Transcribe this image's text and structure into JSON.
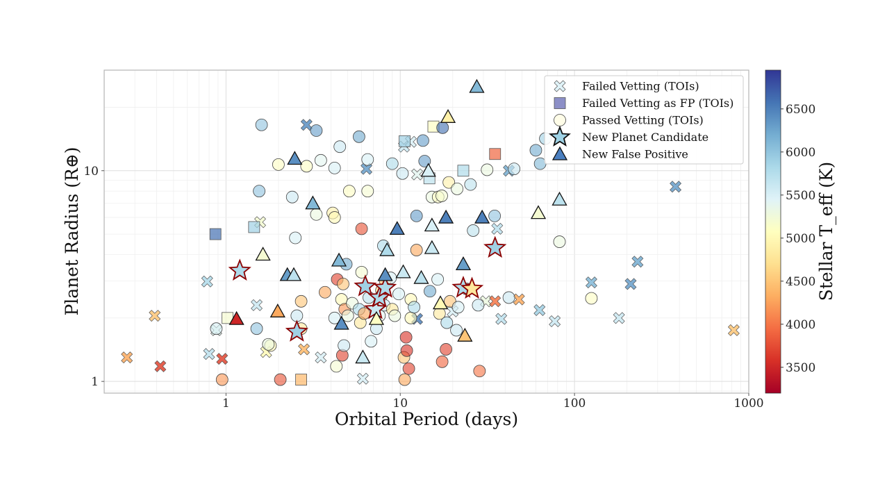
{
  "chart_data": {
    "type": "scatter",
    "x_scale": "log",
    "y_scale": "log",
    "xlabel": "Orbital Period (days)",
    "ylabel": "Planet Radius (R⊕)",
    "xlim": [
      0.2,
      1000
    ],
    "ylim": [
      0.88,
      30
    ],
    "x_ticks": [
      {
        "value": 1,
        "label": "1"
      },
      {
        "value": 10,
        "label": "10"
      },
      {
        "value": 100,
        "label": "100"
      },
      {
        "value": 1000,
        "label": "1000"
      }
    ],
    "y_ticks": [
      {
        "value": 1,
        "label": "1"
      },
      {
        "value": 10,
        "label": "10"
      }
    ],
    "grid": true,
    "legend_position": "top-right",
    "colorbar": {
      "label": "Stellar T_eff (K)",
      "range": [
        3200,
        6950
      ],
      "ticks": [
        3500,
        4000,
        4500,
        5000,
        5500,
        6000,
        6500
      ],
      "colormap": "RdYlBu",
      "colors": [
        "#a50026",
        "#d73027",
        "#f46d43",
        "#fdae61",
        "#fee090",
        "#ffffbf",
        "#e0f3f8",
        "#abd9e9",
        "#74add1",
        "#4575b4",
        "#313695"
      ]
    },
    "series": [
      {
        "name": "Failed Vetting (TOIs)",
        "marker": "x",
        "points": [
          [
            0.27,
            1.3,
            4300
          ],
          [
            0.39,
            2.05,
            4500
          ],
          [
            0.42,
            1.18,
            3700
          ],
          [
            0.78,
            2.98,
            5800
          ],
          [
            0.8,
            1.35,
            5700
          ],
          [
            0.88,
            1.75,
            5400
          ],
          [
            0.95,
            1.28,
            3700
          ],
          [
            1.5,
            2.3,
            5600
          ],
          [
            1.57,
            5.7,
            5200
          ],
          [
            1.7,
            1.38,
            5000
          ],
          [
            2.8,
            1.42,
            4400
          ],
          [
            2.9,
            16.5,
            6400
          ],
          [
            3.5,
            1.3,
            5500
          ],
          [
            6.1,
            1.03,
            5500
          ],
          [
            6.4,
            10.2,
            6300
          ],
          [
            10.5,
            13.0,
            5600
          ],
          [
            11.5,
            13.7,
            5500
          ],
          [
            12.5,
            9.6,
            5400
          ],
          [
            12.5,
            1.98,
            6500
          ],
          [
            20,
            2.15,
            5500
          ],
          [
            31,
            2.4,
            5300
          ],
          [
            35,
            2.4,
            4000
          ],
          [
            36,
            5.3,
            5700
          ],
          [
            38,
            1.98,
            5700
          ],
          [
            42,
            10.0,
            6200
          ],
          [
            48,
            2.45,
            4300
          ],
          [
            63,
            2.18,
            5900
          ],
          [
            77,
            1.93,
            5600
          ],
          [
            125,
            2.95,
            6100
          ],
          [
            180,
            2.0,
            5600
          ],
          [
            210,
            2.9,
            6300
          ],
          [
            230,
            3.7,
            6200
          ],
          [
            380,
            8.4,
            6300
          ],
          [
            820,
            1.75,
            4500
          ]
        ]
      },
      {
        "name": "Failed Vetting as FP (TOIs)",
        "marker": "square",
        "points": [
          [
            0.87,
            5.0,
            6600
          ],
          [
            1.45,
            5.4,
            5900
          ],
          [
            1.02,
            2.0,
            5200
          ],
          [
            2.7,
            1.02,
            4400
          ],
          [
            10.6,
            13.8,
            5900
          ],
          [
            14.7,
            9.2,
            5700
          ],
          [
            15.5,
            16.2,
            5100
          ],
          [
            23,
            10.0,
            5800
          ],
          [
            35,
            12.0,
            3900
          ]
        ]
      },
      {
        "name": "Passed Vetting (TOIs)",
        "marker": "circle",
        "points": [
          [
            0.88,
            1.78,
            5500
          ],
          [
            0.95,
            1.02,
            4200
          ],
          [
            1.6,
            16.5,
            6000
          ],
          [
            1.55,
            8.0,
            6000
          ],
          [
            1.5,
            1.78,
            6000
          ],
          [
            1.8,
            1.48,
            5000
          ],
          [
            1.75,
            1.5,
            5300
          ],
          [
            2.0,
            10.7,
            5100
          ],
          [
            2.05,
            1.02,
            3800
          ],
          [
            2.4,
            7.5,
            5600
          ],
          [
            2.5,
            4.8,
            5500
          ],
          [
            2.55,
            2.05,
            5600
          ],
          [
            2.7,
            2.4,
            4500
          ],
          [
            2.7,
            1.78,
            4800
          ],
          [
            2.9,
            10.5,
            5100
          ],
          [
            3.3,
            6.2,
            5300
          ],
          [
            3.3,
            15.5,
            6300
          ],
          [
            3.5,
            11.2,
            5400
          ],
          [
            3.7,
            2.65,
            4300
          ],
          [
            4.1,
            6.3,
            4900
          ],
          [
            4.2,
            10.3,
            5500
          ],
          [
            4.2,
            6.0,
            5000
          ],
          [
            4.5,
            13.0,
            5600
          ],
          [
            4.2,
            2.0,
            5500
          ],
          [
            4.3,
            1.18,
            5200
          ],
          [
            4.35,
            3.05,
            3700
          ],
          [
            4.6,
            2.45,
            5000
          ],
          [
            4.65,
            1.33,
            3700
          ],
          [
            4.7,
            2.9,
            4500
          ],
          [
            4.8,
            2.2,
            4200
          ],
          [
            4.75,
            1.48,
            5600
          ],
          [
            4.9,
            3.6,
            6200
          ],
          [
            5.1,
            8.0,
            5100
          ],
          [
            5.0,
            2.05,
            5300
          ],
          [
            5.3,
            2.35,
            5300
          ],
          [
            5.8,
            14.5,
            6200
          ],
          [
            5.8,
            2.2,
            5800
          ],
          [
            6.0,
            5.3,
            3800
          ],
          [
            6.0,
            3.3,
            5200
          ],
          [
            5.9,
            1.9,
            4800
          ],
          [
            6.2,
            2.1,
            4300
          ],
          [
            6.5,
            11.3,
            5500
          ],
          [
            6.5,
            8.0,
            5200
          ],
          [
            6.6,
            2.5,
            5700
          ],
          [
            6.8,
            1.55,
            5500
          ],
          [
            7.3,
            1.78,
            5600
          ],
          [
            7.6,
            2.05,
            5400
          ],
          [
            7.8,
            2.7,
            4600
          ],
          [
            7.8,
            2.55,
            4200
          ],
          [
            8.0,
            4.4,
            5800
          ],
          [
            8.1,
            2.3,
            5600
          ],
          [
            8.2,
            3.0,
            4500
          ],
          [
            8.8,
            3.1,
            5500
          ],
          [
            9.0,
            10.8,
            5800
          ],
          [
            9.0,
            2.2,
            4800
          ],
          [
            9.3,
            2.05,
            5300
          ],
          [
            9.8,
            2.6,
            5500
          ],
          [
            10.3,
            9.7,
            5600
          ],
          [
            10.5,
            1.3,
            4500
          ],
          [
            10.6,
            1.02,
            4300
          ],
          [
            10.8,
            1.62,
            3600
          ],
          [
            10.9,
            1.4,
            3600
          ],
          [
            11.2,
            1.15,
            3700
          ],
          [
            11.5,
            2.45,
            5000
          ],
          [
            11.5,
            2.0,
            5000
          ],
          [
            12.0,
            2.25,
            5800
          ],
          [
            12.4,
            4.2,
            4300
          ],
          [
            12.4,
            6.1,
            6300
          ],
          [
            13.5,
            13.9,
            6300
          ],
          [
            13.8,
            11.1,
            6300
          ],
          [
            14.8,
            2.68,
            6200
          ],
          [
            15.2,
            7.5,
            5300
          ],
          [
            16.4,
            3.05,
            5500
          ],
          [
            16.5,
            7.5,
            5100
          ],
          [
            16.8,
            2.1,
            4800
          ],
          [
            17.3,
            7.6,
            5200
          ],
          [
            17.4,
            1.24,
            3900
          ],
          [
            17.5,
            16.0,
            6600
          ],
          [
            18.5,
            1.9,
            5800
          ],
          [
            18.3,
            1.42,
            3700
          ],
          [
            19.3,
            2.4,
            4500
          ],
          [
            19.0,
            8.8,
            4900
          ],
          [
            21.0,
            1.75,
            5600
          ],
          [
            21.2,
            8.2,
            5300
          ],
          [
            21.5,
            2.25,
            5500
          ],
          [
            24.0,
            2.75,
            5700
          ],
          [
            25.3,
            8.6,
            5700
          ],
          [
            26.2,
            5.2,
            5700
          ],
          [
            28.5,
            1.12,
            4000
          ],
          [
            28.0,
            2.3,
            5600
          ],
          [
            31.5,
            10.1,
            5300
          ],
          [
            34.8,
            6.1,
            6000
          ],
          [
            45.0,
            10.2,
            5600
          ],
          [
            42.0,
            2.5,
            5600
          ],
          [
            60.0,
            12.5,
            6200
          ],
          [
            63.5,
            10.8,
            6100
          ],
          [
            68.0,
            14.2,
            5900
          ],
          [
            82.0,
            4.6,
            5300
          ],
          [
            125.0,
            2.48,
            5100
          ]
        ]
      },
      {
        "name": "New Planet Candidate",
        "marker": "star",
        "points": [
          [
            1.2,
            3.35,
            5800
          ],
          [
            2.55,
            1.72,
            5900
          ],
          [
            6.3,
            2.82,
            5900
          ],
          [
            7.2,
            2.2,
            5600
          ],
          [
            7.6,
            2.5,
            5800
          ],
          [
            8.2,
            2.78,
            5800
          ],
          [
            23.0,
            2.78,
            5800
          ],
          [
            25.8,
            2.75,
            4800
          ],
          [
            35.0,
            4.3,
            5900
          ]
        ]
      },
      {
        "name": "New False Positive",
        "marker": "triangle",
        "points": [
          [
            1.15,
            1.98,
            3500
          ],
          [
            1.63,
            4.0,
            5200
          ],
          [
            1.98,
            2.15,
            4300
          ],
          [
            2.25,
            3.2,
            6300
          ],
          [
            2.45,
            3.2,
            5700
          ],
          [
            2.48,
            11.4,
            6400
          ],
          [
            3.15,
            7.0,
            6100
          ],
          [
            4.45,
            3.75,
            6100
          ],
          [
            4.6,
            1.88,
            6400
          ],
          [
            6.1,
            1.3,
            5600
          ],
          [
            7.3,
            1.98,
            5100
          ],
          [
            8.2,
            3.2,
            6400
          ],
          [
            8.4,
            4.2,
            5800
          ],
          [
            9.6,
            5.3,
            6500
          ],
          [
            10.4,
            3.3,
            5600
          ],
          [
            13.2,
            3.1,
            5700
          ],
          [
            14.5,
            10.0,
            5500
          ],
          [
            15.2,
            5.5,
            5500
          ],
          [
            15.2,
            4.3,
            5600
          ],
          [
            17.0,
            2.35,
            5000
          ],
          [
            18.3,
            6.0,
            6500
          ],
          [
            18.8,
            18.0,
            4900
          ],
          [
            23.0,
            3.6,
            6300
          ],
          [
            23.5,
            1.65,
            4500
          ],
          [
            27.5,
            25.0,
            6100
          ],
          [
            29.5,
            6.0,
            6500
          ],
          [
            62.0,
            6.3,
            5200
          ],
          [
            82.0,
            7.3,
            5700
          ]
        ]
      }
    ]
  }
}
